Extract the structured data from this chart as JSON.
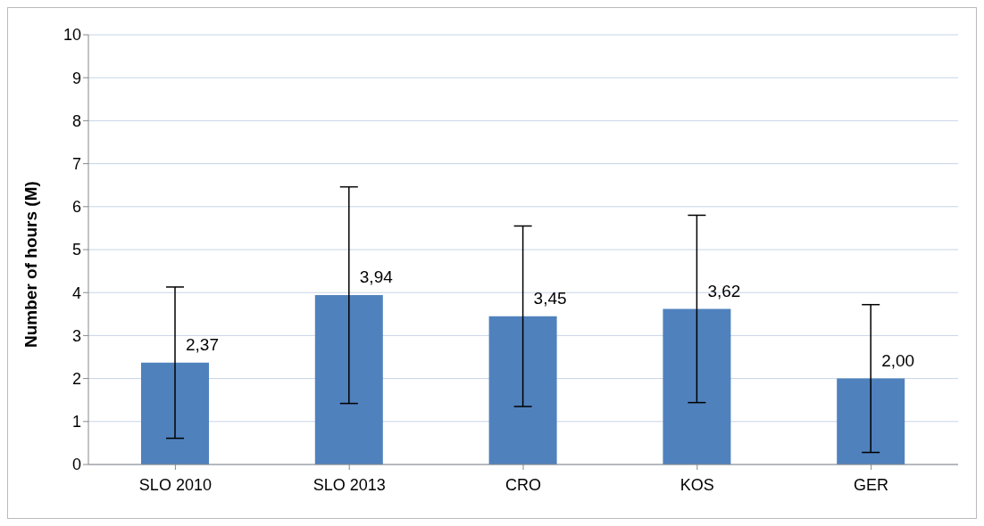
{
  "chart_data": {
    "type": "bar",
    "ylabel": "Number of hours (M)",
    "categories": [
      "SLO 2010",
      "SLO 2013",
      "CRO",
      "KOS",
      "GER"
    ],
    "values": [
      2.37,
      3.94,
      3.45,
      3.62,
      2.0
    ],
    "value_labels": [
      "2,37",
      "3,94",
      "3,45",
      "3,62",
      "2,00"
    ],
    "errors": [
      1.76,
      2.52,
      2.1,
      2.18,
      1.72
    ],
    "color": "#4f81bd",
    "ylim": [
      0,
      10
    ],
    "yticks": [
      0,
      1,
      2,
      3,
      4,
      5,
      6,
      7,
      8,
      9,
      10
    ],
    "grid": "y"
  }
}
